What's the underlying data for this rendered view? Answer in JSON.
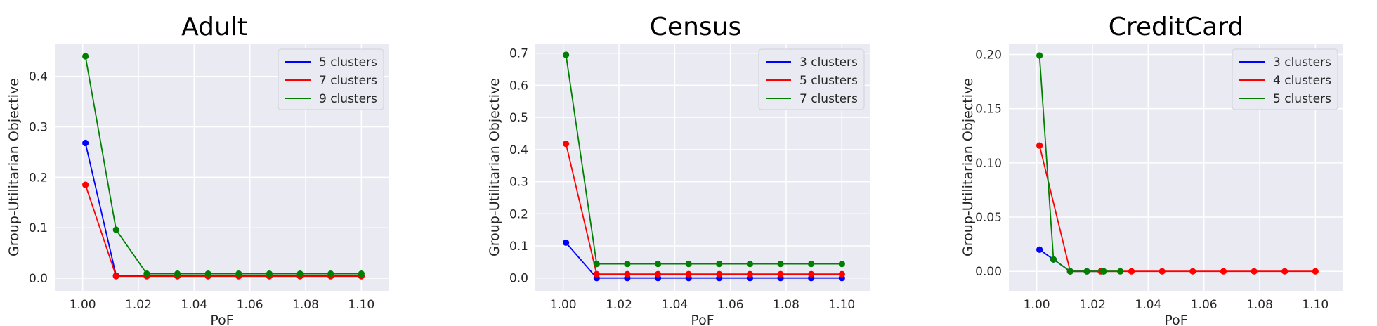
{
  "chart_data": [
    {
      "type": "line",
      "title": "Adult",
      "xlabel": "PoF",
      "ylabel": "Group-Utilitarian Objective",
      "xlim": [
        0.99,
        1.11
      ],
      "ylim": [
        -0.025,
        0.465
      ],
      "xticks": [
        1.0,
        1.02,
        1.04,
        1.06,
        1.08,
        1.1
      ],
      "xtick_labels": [
        "1.00",
        "1.02",
        "1.04",
        "1.06",
        "1.08",
        "1.10"
      ],
      "yticks": [
        0.0,
        0.1,
        0.2,
        0.3,
        0.4
      ],
      "ytick_labels": [
        "0.0",
        "0.1",
        "0.2",
        "0.3",
        "0.4"
      ],
      "grid": true,
      "legend_position": "top-right",
      "series": [
        {
          "name": "5 clusters",
          "color": "#0000ff",
          "x": [
            1.001,
            1.012,
            1.023,
            1.034,
            1.045,
            1.056,
            1.067,
            1.078,
            1.089,
            1.1
          ],
          "y": [
            0.268,
            0.005,
            0.005,
            0.005,
            0.005,
            0.005,
            0.005,
            0.005,
            0.005,
            0.005
          ]
        },
        {
          "name": "7 clusters",
          "color": "#ff0000",
          "x": [
            1.001,
            1.012,
            1.023,
            1.034,
            1.045,
            1.056,
            1.067,
            1.078,
            1.089,
            1.1
          ],
          "y": [
            0.185,
            0.004,
            0.004,
            0.004,
            0.004,
            0.004,
            0.004,
            0.004,
            0.004,
            0.004
          ]
        },
        {
          "name": "9 clusters",
          "color": "#008000",
          "x": [
            1.001,
            1.012,
            1.023,
            1.034,
            1.045,
            1.056,
            1.067,
            1.078,
            1.089,
            1.1
          ],
          "y": [
            0.44,
            0.096,
            0.009,
            0.009,
            0.009,
            0.009,
            0.009,
            0.009,
            0.009,
            0.009
          ]
        }
      ]
    },
    {
      "type": "line",
      "title": "Census",
      "xlabel": "PoF",
      "ylabel": "Group-Utilitarian Objective",
      "xlim": [
        0.99,
        1.11
      ],
      "ylim": [
        -0.04,
        0.73
      ],
      "xticks": [
        1.0,
        1.02,
        1.04,
        1.06,
        1.08,
        1.1
      ],
      "xtick_labels": [
        "1.00",
        "1.02",
        "1.04",
        "1.06",
        "1.08",
        "1.10"
      ],
      "yticks": [
        0.0,
        0.1,
        0.2,
        0.3,
        0.4,
        0.5,
        0.6,
        0.7
      ],
      "ytick_labels": [
        "0.0",
        "0.1",
        "0.2",
        "0.3",
        "0.4",
        "0.5",
        "0.6",
        "0.7"
      ],
      "grid": true,
      "legend_position": "top-right",
      "series": [
        {
          "name": "3 clusters",
          "color": "#0000ff",
          "x": [
            1.001,
            1.012,
            1.023,
            1.034,
            1.045,
            1.056,
            1.067,
            1.078,
            1.089,
            1.1
          ],
          "y": [
            0.11,
            0.0,
            0.0,
            0.0,
            0.0,
            0.0,
            0.0,
            0.0,
            0.0,
            0.0
          ]
        },
        {
          "name": "5 clusters",
          "color": "#ff0000",
          "x": [
            1.001,
            1.012,
            1.023,
            1.034,
            1.045,
            1.056,
            1.067,
            1.078,
            1.089,
            1.1
          ],
          "y": [
            0.418,
            0.012,
            0.012,
            0.012,
            0.012,
            0.012,
            0.012,
            0.012,
            0.012,
            0.012
          ]
        },
        {
          "name": "7 clusters",
          "color": "#008000",
          "x": [
            1.001,
            1.012,
            1.023,
            1.034,
            1.045,
            1.056,
            1.067,
            1.078,
            1.089,
            1.1
          ],
          "y": [
            0.695,
            0.044,
            0.044,
            0.044,
            0.044,
            0.044,
            0.044,
            0.044,
            0.044,
            0.044
          ]
        }
      ]
    },
    {
      "type": "line",
      "title": "CreditCard",
      "xlabel": "PoF",
      "ylabel": "Group-Utilitarian Objective",
      "xlim": [
        0.99,
        1.11
      ],
      "ylim": [
        -0.018,
        0.21
      ],
      "xticks": [
        1.0,
        1.02,
        1.04,
        1.06,
        1.08,
        1.1
      ],
      "xtick_labels": [
        "1.00",
        "1.02",
        "1.04",
        "1.06",
        "1.08",
        "1.10"
      ],
      "yticks": [
        0.0,
        0.05,
        0.1,
        0.15,
        0.2
      ],
      "ytick_labels": [
        "0.00",
        "0.05",
        "0.10",
        "0.15",
        "0.20"
      ],
      "grid": true,
      "legend_position": "top-right",
      "series": [
        {
          "name": "3 clusters",
          "color": "#0000ff",
          "x": [
            1.001,
            1.006,
            1.012,
            1.018,
            1.024
          ],
          "y": [
            0.02,
            0.011,
            0.0,
            0.0,
            0.0
          ]
        },
        {
          "name": "4 clusters",
          "color": "#ff0000",
          "x": [
            1.001,
            1.012,
            1.023,
            1.034,
            1.045,
            1.056,
            1.067,
            1.078,
            1.089,
            1.1
          ],
          "y": [
            0.116,
            0.0,
            0.0,
            0.0,
            0.0,
            0.0,
            0.0,
            0.0,
            0.0,
            0.0
          ]
        },
        {
          "name": "5 clusters",
          "color": "#008000",
          "x": [
            1.001,
            1.006,
            1.012,
            1.018,
            1.024,
            1.03
          ],
          "y": [
            0.199,
            0.011,
            0.0,
            0.0,
            0.0,
            0.0
          ]
        }
      ]
    }
  ]
}
